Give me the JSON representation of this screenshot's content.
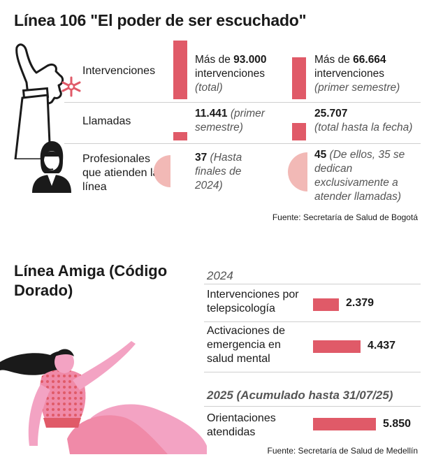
{
  "section1": {
    "title": "Línea 106 \"El poder de ser escuchado\"",
    "rows": {
      "interventions": "Intervenciones",
      "calls": "Llamadas",
      "professionals": "Profesionales que atienden la línea"
    },
    "col1": {
      "interventions": {
        "prefix": "Más de ",
        "value": "93.000",
        "unit": " intervenciones",
        "note": "(total)"
      },
      "calls": {
        "value": "11.441",
        "note": " (primer semestre)"
      },
      "professionals": {
        "value": "37",
        "note": " (Hasta finales de 2024)"
      }
    },
    "col2": {
      "interventions": {
        "prefix": "Más de ",
        "value": "66.664",
        "unit": " intervenciones",
        "note": "(primer semestre)"
      },
      "calls": {
        "value": "25.707",
        "note": "(total hasta la fecha)"
      },
      "professionals": {
        "value": "45",
        "note": " (De ellos, 35 se dedican exclusivamente a atender llamadas)"
      }
    },
    "source": "Fuente: Secretaría de Salud de Bogotá"
  },
  "section2": {
    "title": "Línea Amiga (Código Dorado)",
    "year1": "2024",
    "year2": "2025 (Acumulado hasta 31/07/25)",
    "source": "Fuente: Secretaría de Salud de Medellín"
  },
  "chart_data": [
    {
      "type": "table",
      "title": "Línea 106 \"El poder de ser escuchado\"",
      "rows": [
        "Intervenciones",
        "Llamadas",
        "Profesionales que atienden la línea"
      ],
      "values": [
        {
          "row": "Intervenciones",
          "col1": 93000,
          "col2": 66664
        },
        {
          "row": "Llamadas",
          "col1": 11441,
          "col2": 25707
        },
        {
          "row": "Profesionales que atienden la línea",
          "col1": 37,
          "col2": 45
        }
      ]
    },
    {
      "type": "bar",
      "title": "Línea Amiga (Código Dorado)",
      "categories": [
        "Intervenciones por telepsicología",
        "Activaciones de emergencia en salud mental",
        "Orientaciones atendidas"
      ],
      "groups": [
        "2024",
        "2024",
        "2025 (Acumulado hasta 31/07/25)"
      ],
      "values": [
        2379,
        4437,
        5850
      ],
      "value_labels": [
        "2.379",
        "4.437",
        "5.850"
      ],
      "colors": {
        "bar": "#e05a68",
        "circle": "#f2b9b6"
      }
    }
  ]
}
